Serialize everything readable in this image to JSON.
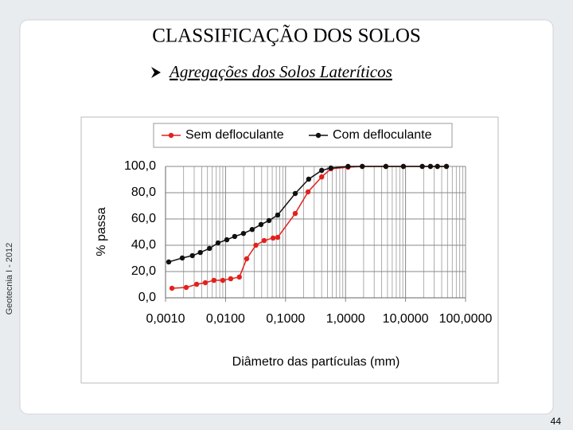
{
  "slide": {
    "title": "CLASSIFICAÇÃO DOS SOLOS",
    "subtitle": "Agregações dos Solos Lateríticos",
    "side_text": "Geotecnia I - 2012",
    "page_number": 44
  },
  "chart_data": {
    "type": "line",
    "x_label": "Diâmetro das partículas (mm)",
    "y_label": "% passa",
    "xscale": "log",
    "grid": true,
    "legend": "top",
    "xlim": [
      0.001,
      100
    ],
    "xticks": [
      {
        "value": 0.001,
        "label": "0,0010"
      },
      {
        "value": 0.01,
        "label": "0,0100"
      },
      {
        "value": 0.1,
        "label": "0,1000"
      },
      {
        "value": 1,
        "label": "1,0000"
      },
      {
        "value": 10,
        "label": "10,0000"
      },
      {
        "value": 100,
        "label": "100,0000"
      }
    ],
    "ylim": [
      0,
      100
    ],
    "yticks": [
      {
        "value": 0,
        "label": "0,0"
      },
      {
        "value": 20,
        "label": "20,0"
      },
      {
        "value": 40,
        "label": "40,0"
      },
      {
        "value": 60,
        "label": "60,0"
      },
      {
        "value": 80,
        "label": "80,0"
      },
      {
        "value": 100,
        "label": "100,0"
      }
    ],
    "series": [
      {
        "name": "Sem defloculante",
        "color": "#e3211c",
        "x": [
          0.00128,
          0.00221,
          0.0033,
          0.0046,
          0.0064,
          0.009,
          0.0122,
          0.017,
          0.0225,
          0.032,
          0.044,
          0.062,
          0.074,
          0.145,
          0.237,
          0.4,
          0.57,
          1.1,
          1.9,
          4.7,
          9.2,
          19,
          26,
          34,
          48
        ],
        "values": [
          7.3,
          7.9,
          10.3,
          11.5,
          13.3,
          13.3,
          14.5,
          15.8,
          29.7,
          40,
          43.6,
          45.5,
          46,
          64.2,
          80.6,
          92,
          98.2,
          99.4,
          100,
          100,
          100,
          100,
          100,
          100,
          100
        ]
      },
      {
        "name": "Com defloculante",
        "color": "#111111",
        "x": [
          0.00113,
          0.0019,
          0.0028,
          0.0038,
          0.0054,
          0.0075,
          0.0105,
          0.0142,
          0.0199,
          0.0278,
          0.039,
          0.053,
          0.074,
          0.145,
          0.243,
          0.4,
          0.57,
          1.1,
          1.9,
          4.7,
          9.2,
          19,
          26,
          34,
          48
        ],
        "values": [
          27.3,
          30.3,
          32.1,
          34.5,
          37.6,
          41.8,
          44.2,
          46.7,
          49,
          52,
          55.8,
          58.8,
          63,
          79.4,
          90.3,
          97,
          98.8,
          100,
          100,
          100,
          100,
          100,
          100,
          100,
          100
        ]
      }
    ]
  }
}
